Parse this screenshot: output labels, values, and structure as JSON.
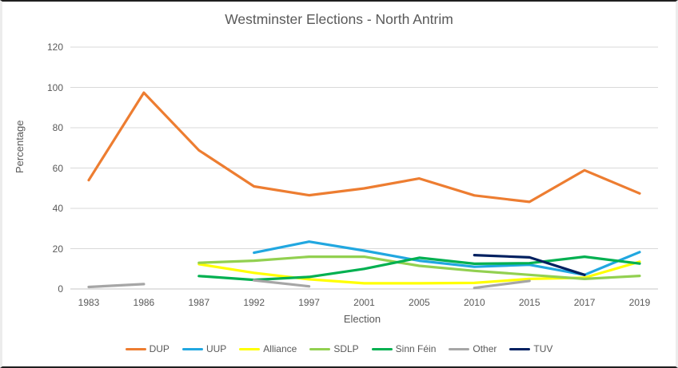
{
  "chart_data": {
    "type": "line",
    "title": "Westminster Elections - North Antrim",
    "xlabel": "Election",
    "ylabel": "Percentage",
    "categories": [
      "1983",
      "1986",
      "1987",
      "1992",
      "1997",
      "2001",
      "2005",
      "2010",
      "2015",
      "2017",
      "2019"
    ],
    "ylim": [
      0,
      120
    ],
    "yticks": [
      0,
      20,
      40,
      60,
      80,
      100,
      120
    ],
    "grid": true,
    "legend_position": "bottom",
    "series": [
      {
        "name": "DUP",
        "color": "#ED7D31",
        "values": [
          54.0,
          97.4,
          68.8,
          50.9,
          46.5,
          49.9,
          54.8,
          46.4,
          43.2,
          58.9,
          47.4
        ]
      },
      {
        "name": "UUP",
        "color": "#21A7E0",
        "values": [
          null,
          null,
          null,
          18.0,
          23.5,
          19.0,
          14.0,
          11.0,
          12.0,
          7.0,
          18.3
        ]
      },
      {
        "name": "Alliance",
        "color": "#FFFF00",
        "values": [
          null,
          null,
          12.3,
          8.0,
          4.8,
          2.8,
          2.8,
          3.0,
          5.0,
          5.6,
          13.5
        ]
      },
      {
        "name": "SDLP",
        "color": "#92D050",
        "values": [
          null,
          null,
          13.0,
          14.0,
          16.0,
          16.0,
          11.5,
          9.0,
          7.0,
          5.0,
          6.5
        ]
      },
      {
        "name": "Sinn Féin",
        "color": "#00B050",
        "values": [
          null,
          null,
          6.4,
          4.5,
          6.0,
          10.0,
          15.5,
          12.5,
          12.8,
          16.0,
          12.6
        ]
      },
      {
        "name": "Other",
        "color": "#A6A6A6",
        "values": [
          1.0,
          2.4,
          null,
          4.3,
          1.3,
          null,
          null,
          0.5,
          4.0,
          null,
          null
        ]
      },
      {
        "name": "TUV",
        "color": "#002060",
        "values": [
          null,
          null,
          null,
          null,
          null,
          null,
          null,
          16.8,
          15.7,
          7.0,
          null
        ]
      }
    ],
    "colors": {
      "gridline": "#D9D9D9",
      "axis_line": "#C6C6C6",
      "text": "#595959",
      "background": "#FFFFFF",
      "window_border": "#1F1F1F"
    }
  }
}
